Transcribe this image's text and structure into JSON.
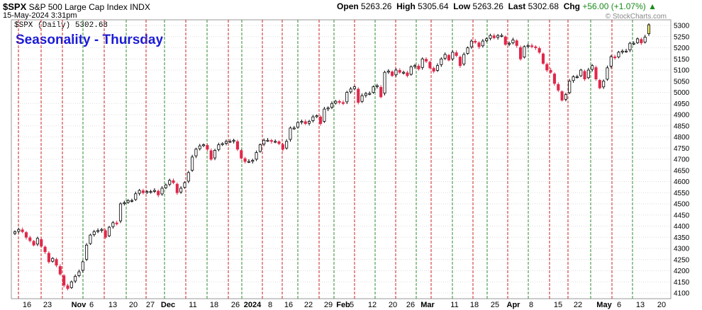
{
  "header": {
    "symbol": "$SPX",
    "name": "S&P 500 Large Cap Index",
    "exchange": "INDX",
    "datetime": "15-May-2024 3:31pm",
    "open_label": "Open",
    "open": "5263.26",
    "high_label": "High",
    "high": "5305.64",
    "low_label": "Low",
    "low": "5263.26",
    "last_label": "Last",
    "last": "5302.68",
    "chg_label": "Chg",
    "chg": "+56.00 (+1.07%)",
    "watermark": "© StockCharts.com",
    "legend": "$SPX (Daily) 5302.68"
  },
  "colors": {
    "up_fill": "#ffffff",
    "down_fill": "#e0284a",
    "candle_stroke": "#000000",
    "last_fill": "#f5f07a",
    "thursday_line": "#2e8b2e",
    "red_line": "#cc2222",
    "grid": "#dddddd",
    "title": "#1a1ad8",
    "chg_up": "#1a8a1a"
  },
  "chart_data": {
    "type": "candlestick",
    "title": "Seasonality - Thursday",
    "xlabel": "",
    "ylabel": "",
    "ylim": [
      4085,
      5335
    ],
    "yticks": [
      4100,
      4150,
      4200,
      4250,
      4300,
      4350,
      4400,
      4450,
      4500,
      4550,
      4600,
      4650,
      4700,
      4750,
      4800,
      4850,
      4900,
      4950,
      5000,
      5050,
      5100,
      5150,
      5200,
      5250,
      5300
    ],
    "grid": true,
    "xtick_labels": [
      {
        "label": "16",
        "bold": false
      },
      {
        "label": "23",
        "bold": false
      },
      {
        "label": "Nov",
        "bold": true
      },
      {
        "label": "6",
        "bold": false
      },
      {
        "label": "13",
        "bold": false
      },
      {
        "label": "20",
        "bold": false
      },
      {
        "label": "27",
        "bold": false
      },
      {
        "label": "Dec",
        "bold": true
      },
      {
        "label": "11",
        "bold": false
      },
      {
        "label": "18",
        "bold": false
      },
      {
        "label": "26",
        "bold": false
      },
      {
        "label": "2024",
        "bold": true
      },
      {
        "label": "8",
        "bold": false
      },
      {
        "label": "16",
        "bold": false
      },
      {
        "label": "22",
        "bold": false
      },
      {
        "label": "29",
        "bold": false
      },
      {
        "label": "Feb",
        "bold": true
      },
      {
        "label": "5",
        "bold": false
      },
      {
        "label": "12",
        "bold": false
      },
      {
        "label": "20",
        "bold": false
      },
      {
        "label": "26",
        "bold": false
      },
      {
        "label": "Mar",
        "bold": true
      },
      {
        "label": "11",
        "bold": false
      },
      {
        "label": "18",
        "bold": false
      },
      {
        "label": "25",
        "bold": false
      },
      {
        "label": "Apr",
        "bold": true
      },
      {
        "label": "8",
        "bold": false
      },
      {
        "label": "15",
        "bold": false
      },
      {
        "label": "22",
        "bold": false
      },
      {
        "label": "May",
        "bold": true
      },
      {
        "label": "6",
        "bold": false
      },
      {
        "label": "13",
        "bold": false
      },
      {
        "label": "20",
        "bold": false
      }
    ],
    "closes": [
      4375,
      4385,
      4375,
      4350,
      4335,
      4315,
      4345,
      4310,
      4285,
      4240,
      4255,
      4225,
      4185,
      4135,
      4120,
      4150,
      4175,
      4195,
      4240,
      4315,
      4360,
      4375,
      4380,
      4385,
      4350,
      4395,
      4415,
      4410,
      4500,
      4505,
      4515,
      4515,
      4545,
      4560,
      4550,
      4555,
      4555,
      4560,
      4540,
      4570,
      4585,
      4605,
      4595,
      4550,
      4570,
      4595,
      4640,
      4710,
      4745,
      4760,
      4765,
      4745,
      4700,
      4740,
      4765,
      4770,
      4780,
      4780,
      4785,
      4745,
      4705,
      4690,
      4690,
      4695,
      4730,
      4765,
      4785,
      4785,
      4780,
      4780,
      4770,
      4745,
      4780,
      4840,
      4840,
      4865,
      4870,
      4860,
      4870,
      4890,
      4895,
      4860,
      4925,
      4930,
      4950,
      4960,
      4955,
      4950,
      5000,
      5015,
      5025,
      4955,
      4985,
      4995,
      4995,
      5025,
      5030,
      4980,
      5090,
      5095,
      5075,
      5100,
      5090,
      5090,
      5075,
      5115,
      5120,
      5105,
      5150,
      5140,
      5110,
      5095,
      5120,
      5150,
      5170,
      5145,
      5180,
      5165,
      5120,
      5170,
      5200,
      5230,
      5225,
      5205,
      5230,
      5240,
      5255,
      5245,
      5255,
      5255,
      5215,
      5220,
      5235,
      5210,
      5150,
      5205,
      5210,
      5205,
      5200,
      5180,
      5130,
      5100,
      5090,
      5040,
      5010,
      4965,
      4990,
      5050,
      5070,
      5070,
      5100,
      5060,
      5100,
      5120,
      5060,
      5020,
      5050,
      5110,
      5160,
      5155,
      5180,
      5185,
      5185,
      5220,
      5220,
      5240,
      5222,
      5248,
      5303
    ]
  }
}
